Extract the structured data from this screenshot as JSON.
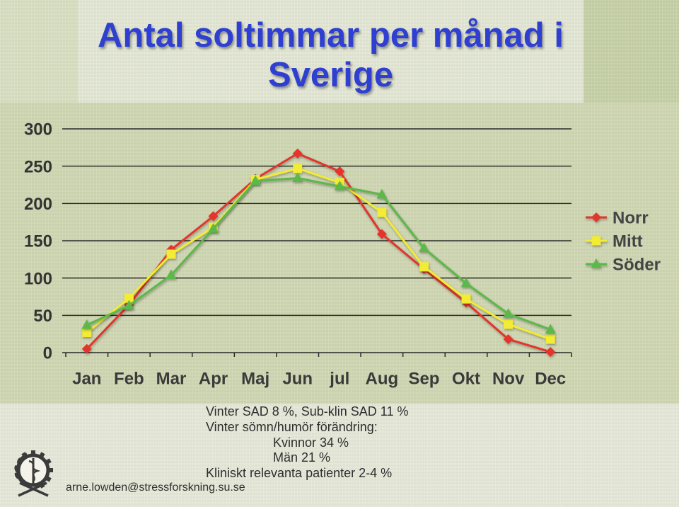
{
  "chart_data": {
    "type": "line",
    "title": "Antal soltimmar per månad i Sverige",
    "categories": [
      "Jan",
      "Feb",
      "Mar",
      "Apr",
      "Maj",
      "Jun",
      "jul",
      "Aug",
      "Sep",
      "Okt",
      "Nov",
      "Dec"
    ],
    "ylim": [
      0,
      300
    ],
    "yticks": [
      0,
      50,
      100,
      150,
      200,
      250,
      300
    ],
    "grid": true,
    "legend_position": "right",
    "series": [
      {
        "name": "Norr",
        "color": "#e3352b",
        "marker": "diamond",
        "values": [
          5,
          64,
          138,
          183,
          233,
          267,
          243,
          159,
          112,
          67,
          18,
          1
        ]
      },
      {
        "name": "Mitt",
        "color": "#f2ec34",
        "marker": "square",
        "values": [
          27,
          73,
          132,
          168,
          232,
          247,
          228,
          188,
          115,
          72,
          38,
          18
        ]
      },
      {
        "name": "Söder",
        "color": "#5cb84a",
        "marker": "triangle",
        "values": [
          37,
          63,
          104,
          166,
          230,
          234,
          223,
          212,
          140,
          93,
          52,
          31
        ]
      }
    ]
  },
  "notes": [
    "Vinter SAD 8 %, Sub-klin SAD 11 %",
    "Vinter sömn/humör förändring:",
    "Kvinnor 34 %",
    "Män 21 %",
    "Kliniskt relevanta patienter 2-4 %"
  ],
  "footer": {
    "email": "arne.lowden@stressforskning.su.se"
  },
  "logo": {
    "icon": "gear-emblem-icon"
  },
  "theme": {
    "title_color": "#2e3fd1",
    "text_color": "#2e2e2e",
    "grid_color": "#2b2b2b"
  }
}
